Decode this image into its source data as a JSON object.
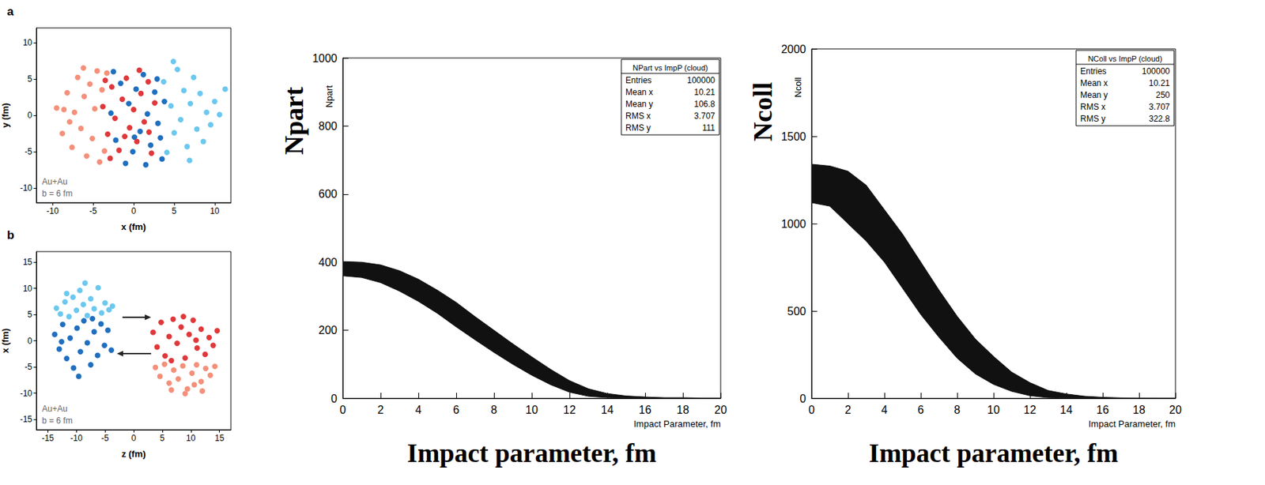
{
  "chart_data": [
    {
      "type": "scatter",
      "title": "a",
      "xlabel": "x (fm)",
      "ylabel": "y (fm)",
      "xlim": [
        -12,
        12
      ],
      "ylim": [
        -12,
        12
      ],
      "xticks": [
        -10,
        -5,
        0,
        5,
        10
      ],
      "yticks": [
        -10,
        -5,
        0,
        5,
        10
      ],
      "grid": false,
      "annotations": [
        "Au+Au",
        "b = 6 fm"
      ],
      "series": [
        {
          "color": "#f4907a",
          "values": [
            [
              -9.5,
              1
            ],
            [
              -8.8,
              -2.5
            ],
            [
              -8.2,
              3.1
            ],
            [
              -7.6,
              -4.4
            ],
            [
              -7.3,
              0.4
            ],
            [
              -6.9,
              5.2
            ],
            [
              -6.5,
              -1.8
            ],
            [
              -6.1,
              2.6
            ],
            [
              -5.8,
              -5.6
            ],
            [
              -5.4,
              4.3
            ],
            [
              -5.1,
              -3.2
            ],
            [
              -4.8,
              0.9
            ],
            [
              -4.5,
              6.1
            ],
            [
              -4.2,
              -6.4
            ],
            [
              -3.9,
              3.5
            ],
            [
              -3.6,
              -4.9
            ],
            [
              -8.6,
              0.8
            ],
            [
              -7.9,
              -0.9
            ],
            [
              -3.3,
              5.8
            ],
            [
              -6.2,
              6.5
            ]
          ]
        },
        {
          "color": "#6cc8ef",
          "values": [
            [
              3.7,
              4.6
            ],
            [
              4.1,
              -5.1
            ],
            [
              4.6,
              1.3
            ],
            [
              5.0,
              -2.4
            ],
            [
              5.4,
              6.3
            ],
            [
              5.8,
              -0.6
            ],
            [
              6.2,
              3.4
            ],
            [
              6.6,
              -4.3
            ],
            [
              7.0,
              1.6
            ],
            [
              7.4,
              5.2
            ],
            [
              7.8,
              -1.9
            ],
            [
              8.2,
              3.0
            ],
            [
              8.6,
              -3.6
            ],
            [
              9.0,
              0.4
            ],
            [
              9.5,
              -1.3
            ],
            [
              10.0,
              1.9
            ],
            [
              10.6,
              0.1
            ],
            [
              4.9,
              7.4
            ],
            [
              6.9,
              -6.2
            ],
            [
              11.3,
              3.6
            ]
          ]
        },
        {
          "color": "#1f6fbf",
          "values": [
            [
              -2.8,
              0.3
            ],
            [
              -2.2,
              -3.4
            ],
            [
              -1.6,
              4.4
            ],
            [
              -1.0,
              -6.6
            ],
            [
              -0.6,
              1.6
            ],
            [
              -0.1,
              -5.0
            ],
            [
              0.3,
              3.6
            ],
            [
              0.8,
              -2.2
            ],
            [
              1.2,
              5.6
            ],
            [
              1.7,
              0.2
            ],
            [
              2.1,
              -4.1
            ],
            [
              2.6,
              3.2
            ],
            [
              3.0,
              -1.1
            ],
            [
              3.5,
              -6.0
            ],
            [
              3.8,
              1.9
            ],
            [
              -2.5,
              6.0
            ],
            [
              0.1,
              -3.0
            ],
            [
              2.9,
              5.0
            ],
            [
              1.5,
              -6.8
            ],
            [
              3.3,
              -3.1
            ]
          ]
        },
        {
          "color": "#e0383a",
          "values": [
            [
              -3.8,
              1.2
            ],
            [
              -3.2,
              -2.6
            ],
            [
              -2.7,
              3.9
            ],
            [
              -2.3,
              -0.4
            ],
            [
              -1.8,
              -4.8
            ],
            [
              -1.4,
              2.2
            ],
            [
              -0.9,
              5.1
            ],
            [
              -0.5,
              -1.7
            ],
            [
              0,
              0.8
            ],
            [
              0.4,
              -3.6
            ],
            [
              0.9,
              3.0
            ],
            [
              1.3,
              -0.9
            ],
            [
              1.8,
              4.6
            ],
            [
              2.2,
              -5.2
            ],
            [
              2.6,
              1.7
            ],
            [
              -2.9,
              -5.9
            ],
            [
              -1.1,
              -2.9
            ],
            [
              0.7,
              6.2
            ],
            [
              1.9,
              -2.3
            ],
            [
              -3.5,
              4.8
            ]
          ]
        }
      ]
    },
    {
      "type": "scatter",
      "title": "b",
      "xlabel": "z (fm)",
      "ylabel": "x (fm)",
      "xlim": [
        -17,
        17
      ],
      "ylim": [
        -17,
        17
      ],
      "xticks": [
        -15,
        -10,
        -5,
        0,
        5,
        10,
        15
      ],
      "yticks": [
        -15,
        -10,
        -5,
        0,
        5,
        10,
        15
      ],
      "grid": false,
      "annotations": [
        "Au+Au",
        "b = 6 fm"
      ],
      "series": [
        {
          "color": "#6cc8ef",
          "values": [
            [
              -13.5,
              6.2
            ],
            [
              -12.8,
              5.1
            ],
            [
              -12.0,
              7.4
            ],
            [
              -11.3,
              4.6
            ],
            [
              -10.6,
              8.3
            ],
            [
              -10.0,
              5.8
            ],
            [
              -9.4,
              9.6
            ],
            [
              -8.8,
              6.9
            ],
            [
              -8.1,
              4.8
            ],
            [
              -7.5,
              8.0
            ],
            [
              -6.9,
              6.1
            ],
            [
              -6.2,
              10.1
            ],
            [
              -5.6,
              5.3
            ],
            [
              -5.0,
              7.2
            ],
            [
              -4.3,
              5.9
            ],
            [
              -11.7,
              9.0
            ],
            [
              -8.5,
              11.0
            ],
            [
              -3.7,
              6.6
            ]
          ]
        },
        {
          "color": "#1f6fbf",
          "values": [
            [
              -13.8,
              1.2
            ],
            [
              -13.0,
              -1.6
            ],
            [
              -12.4,
              3.1
            ],
            [
              -11.7,
              -3.4
            ],
            [
              -11.1,
              0.5
            ],
            [
              -10.5,
              -5.2
            ],
            [
              -9.9,
              2.4
            ],
            [
              -9.3,
              -2.1
            ],
            [
              -8.7,
              3.8
            ],
            [
              -8.1,
              -0.4
            ],
            [
              -7.5,
              -4.6
            ],
            [
              -6.9,
              1.7
            ],
            [
              -6.3,
              -2.8
            ],
            [
              -5.7,
              3.2
            ],
            [
              -5.1,
              -0.9
            ],
            [
              -4.5,
              2.0
            ],
            [
              -3.9,
              -1.8
            ],
            [
              -9.6,
              -6.8
            ],
            [
              -7.2,
              4.2
            ],
            [
              -12.6,
              -0.2
            ]
          ]
        },
        {
          "color": "#f4907a",
          "values": [
            [
              3.8,
              -5.1
            ],
            [
              4.6,
              -6.8
            ],
            [
              5.4,
              -4.5
            ],
            [
              6.2,
              -8.1
            ],
            [
              7.0,
              -5.6
            ],
            [
              7.8,
              -7.3
            ],
            [
              8.6,
              -4.8
            ],
            [
              9.4,
              -9.2
            ],
            [
              10.2,
              -6.2
            ],
            [
              11.0,
              -4.6
            ],
            [
              11.8,
              -7.8
            ],
            [
              12.6,
              -5.3
            ],
            [
              13.4,
              -6.6
            ],
            [
              14.2,
              -4.9
            ],
            [
              9.0,
              -10.1
            ],
            [
              6.6,
              -9.4
            ],
            [
              12.0,
              -9.6
            ],
            [
              10.6,
              -8.4
            ]
          ]
        },
        {
          "color": "#e0383a",
          "values": [
            [
              3.4,
              1.6
            ],
            [
              4.1,
              -1.2
            ],
            [
              4.8,
              3.5
            ],
            [
              5.5,
              -2.9
            ],
            [
              6.2,
              0.8
            ],
            [
              6.9,
              4.1
            ],
            [
              7.6,
              -0.5
            ],
            [
              8.3,
              2.6
            ],
            [
              9.0,
              -3.3
            ],
            [
              9.7,
              1.2
            ],
            [
              10.4,
              3.9
            ],
            [
              11.1,
              -1.4
            ],
            [
              11.8,
              2.2
            ],
            [
              12.5,
              -2.6
            ],
            [
              13.2,
              0.6
            ],
            [
              13.9,
              -0.9
            ],
            [
              8.7,
              4.6
            ],
            [
              6.6,
              -3.8
            ],
            [
              10.9,
              0.1
            ],
            [
              14.6,
              1.9
            ]
          ]
        }
      ]
    },
    {
      "type": "band",
      "xlabel": "Impact parameter, fm",
      "ylabel": "Npart",
      "annotations": [
        "Impact Parameter, fm",
        "Npart"
      ],
      "xlim": [
        0,
        20
      ],
      "ylim": [
        0,
        1000
      ],
      "xticks": [
        0,
        2,
        4,
        6,
        8,
        10,
        12,
        14,
        16,
        18,
        20
      ],
      "yticks": [
        0,
        200,
        400,
        600,
        800,
        1000
      ],
      "grid": false,
      "color": "#111111",
      "x": [
        0,
        1,
        2,
        3,
        4,
        5,
        6,
        7,
        8,
        9,
        10,
        11,
        12,
        13,
        14,
        15,
        16,
        17,
        18,
        19,
        20
      ],
      "low": [
        360,
        355,
        340,
        315,
        285,
        250,
        210,
        172,
        135,
        100,
        68,
        40,
        18,
        6,
        2,
        0,
        0,
        0,
        0,
        0,
        0
      ],
      "high": [
        402,
        400,
        392,
        375,
        350,
        318,
        282,
        240,
        200,
        160,
        122,
        85,
        52,
        28,
        14,
        7,
        4,
        2,
        2,
        1,
        1
      ],
      "stats": {
        "title": "NPart vs ImpP (cloud)",
        "rows": [
          [
            "Entries",
            100000
          ],
          [
            "Mean x",
            10.21
          ],
          [
            "Mean y",
            106.8
          ],
          [
            "RMS x",
            3.707
          ],
          [
            "RMS y",
            111
          ]
        ]
      }
    },
    {
      "type": "band",
      "xlabel": "Impact parameter, fm",
      "ylabel": "Ncoll",
      "annotations": [
        "Impact Parameter, fm",
        "Ncoll"
      ],
      "xlim": [
        0,
        20
      ],
      "ylim": [
        0,
        2000
      ],
      "xticks": [
        0,
        2,
        4,
        6,
        8,
        10,
        12,
        14,
        16,
        18,
        20
      ],
      "yticks": [
        0,
        500,
        1000,
        1500,
        2000
      ],
      "grid": false,
      "color": "#111111",
      "x": [
        0,
        1,
        2,
        3,
        4,
        5,
        6,
        7,
        8,
        9,
        10,
        11,
        12,
        13,
        14,
        15,
        16,
        17,
        18,
        19,
        20
      ],
      "low": [
        1120,
        1100,
        1000,
        900,
        780,
        630,
        480,
        350,
        230,
        140,
        80,
        40,
        15,
        4,
        0,
        0,
        0,
        0,
        0,
        0,
        0
      ],
      "high": [
        1340,
        1330,
        1300,
        1220,
        1080,
        940,
        780,
        620,
        470,
        340,
        240,
        150,
        90,
        45,
        25,
        12,
        6,
        3,
        2,
        1,
        1
      ],
      "stats": {
        "title": "NColl vs ImpP (cloud)",
        "rows": [
          [
            "Entries",
            100000
          ],
          [
            "Mean x",
            10.21
          ],
          [
            "Mean y",
            250
          ],
          [
            "RMS x",
            3.707
          ],
          [
            "RMS y",
            322.8
          ]
        ]
      }
    }
  ]
}
